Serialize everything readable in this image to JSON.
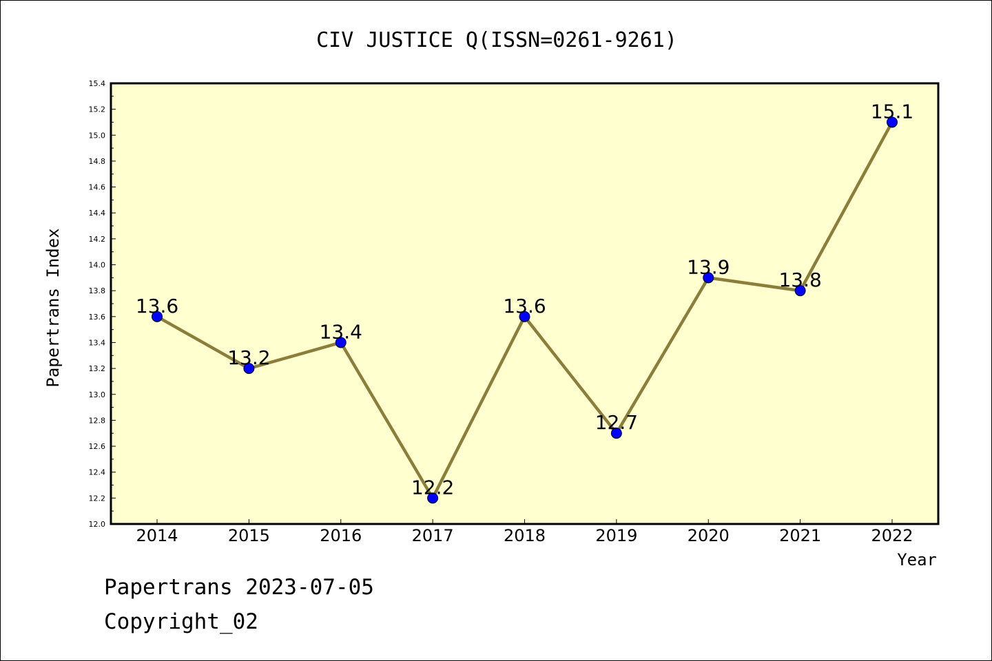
{
  "chart_data": {
    "type": "line",
    "title": "CIV JUSTICE Q(ISSN=0261-9261)",
    "xlabel": "Year",
    "ylabel": "Papertrans Index",
    "categories": [
      "2014",
      "2015",
      "2016",
      "2017",
      "2018",
      "2019",
      "2020",
      "2021",
      "2022"
    ],
    "series": [
      {
        "values": [
          13.6,
          13.2,
          13.4,
          12.2,
          13.6,
          12.7,
          13.9,
          13.8,
          15.1
        ]
      }
    ],
    "data_labels": [
      "13.6",
      "13.2",
      "13.4",
      "12.2",
      "13.6",
      "12.7",
      "13.9",
      "13.8",
      "15.1"
    ],
    "ylim": [
      12.0,
      15.4
    ],
    "y_ticks": [
      "12.0",
      "12.2",
      "12.4",
      "12.6",
      "12.8",
      "13.0",
      "13.2",
      "13.4",
      "13.6",
      "13.8",
      "14.0",
      "14.2",
      "14.4",
      "14.6",
      "14.8",
      "15.0",
      "15.2",
      "15.4"
    ],
    "grid": false,
    "legend": "none",
    "colors": {
      "plot_background": "#ffffd0",
      "line": "#8b7d3a",
      "marker": "#0000ff"
    }
  },
  "footer": {
    "date": "Papertrans 2023-07-05",
    "copyright": "Copyright_02"
  }
}
